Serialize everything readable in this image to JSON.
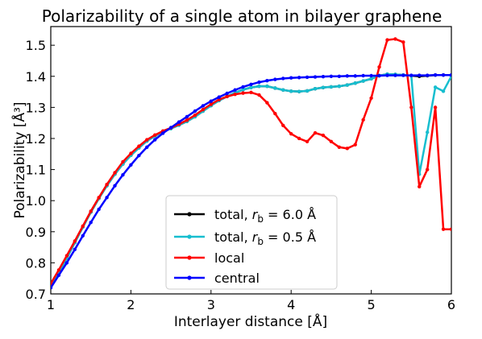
{
  "chart_data": {
    "type": "line",
    "title": "Polarizability of a single atom in bilayer graphene",
    "xlabel": "Interlayer distance [Å]",
    "ylabel": "Polarizability [Å³]",
    "xlim": [
      1,
      6
    ],
    "ylim": [
      0.7,
      1.56
    ],
    "xticks": [
      1,
      2,
      3,
      4,
      5,
      6
    ],
    "yticks": [
      0.7,
      0.8,
      0.9,
      1.0,
      1.1,
      1.2,
      1.3,
      1.4,
      1.5
    ],
    "ytick_labels": [
      "0.7",
      "0.8",
      "0.9",
      "1.0",
      "1.1",
      "1.2",
      "1.3",
      "1.4",
      "1.5"
    ],
    "xtick_labels": [
      "1",
      "2",
      "3",
      "4",
      "5",
      "6"
    ],
    "legend_position": "lower-center",
    "series": [
      {
        "legend_parts": [
          "total, ",
          "r",
          "b",
          " = 6.0 Å"
        ],
        "color": "#000000",
        "marker": "dot",
        "x": [
          1.0,
          1.1,
          1.2,
          1.3,
          1.4,
          1.5,
          1.6,
          1.7,
          1.8,
          1.9,
          2.0,
          2.1,
          2.2,
          2.3,
          2.4,
          2.5,
          2.6,
          2.7,
          2.8,
          2.9,
          3.0,
          3.1,
          3.2,
          3.3,
          3.4,
          3.5,
          3.6,
          3.7,
          3.8,
          3.9,
          4.0,
          4.1,
          4.2,
          4.3,
          4.4,
          4.5,
          4.6,
          4.7,
          4.8,
          4.9,
          5.0,
          5.1,
          5.2,
          5.3,
          5.4,
          5.5,
          5.6,
          5.7,
          5.8,
          5.9,
          6.0
        ],
        "y": [
          0.725,
          0.77,
          0.815,
          0.865,
          0.915,
          0.963,
          1.007,
          1.048,
          1.085,
          1.118,
          1.146,
          1.17,
          1.192,
          1.208,
          1.222,
          1.232,
          1.243,
          1.255,
          1.27,
          1.288,
          1.306,
          1.322,
          1.335,
          1.347,
          1.357,
          1.364,
          1.368,
          1.368,
          1.362,
          1.356,
          1.352,
          1.351,
          1.353,
          1.36,
          1.364,
          1.366,
          1.368,
          1.372,
          1.378,
          1.385,
          1.392,
          1.402,
          1.407,
          1.406,
          1.404,
          1.402,
          1.4,
          1.402,
          1.404,
          1.404,
          1.404
        ]
      },
      {
        "legend_parts": [
          "total, ",
          "r",
          "b",
          " = 0.5 Å"
        ],
        "color": "#17becf",
        "marker": "dot",
        "x": [
          1.0,
          1.1,
          1.2,
          1.3,
          1.4,
          1.5,
          1.6,
          1.7,
          1.8,
          1.9,
          2.0,
          2.1,
          2.2,
          2.3,
          2.4,
          2.5,
          2.6,
          2.7,
          2.8,
          2.9,
          3.0,
          3.1,
          3.2,
          3.3,
          3.4,
          3.5,
          3.6,
          3.7,
          3.8,
          3.9,
          4.0,
          4.1,
          4.2,
          4.3,
          4.4,
          4.5,
          4.6,
          4.7,
          4.8,
          4.9,
          5.0,
          5.1,
          5.2,
          5.3,
          5.4,
          5.5,
          5.6,
          5.7,
          5.8,
          5.9,
          6.0
        ],
        "y": [
          0.725,
          0.77,
          0.815,
          0.865,
          0.915,
          0.963,
          1.007,
          1.048,
          1.085,
          1.118,
          1.146,
          1.17,
          1.192,
          1.208,
          1.222,
          1.232,
          1.243,
          1.255,
          1.27,
          1.288,
          1.306,
          1.322,
          1.335,
          1.347,
          1.357,
          1.364,
          1.368,
          1.368,
          1.362,
          1.356,
          1.352,
          1.351,
          1.353,
          1.36,
          1.364,
          1.366,
          1.368,
          1.372,
          1.378,
          1.385,
          1.392,
          1.402,
          1.407,
          1.406,
          1.404,
          1.402,
          1.085,
          1.22,
          1.365,
          1.352,
          1.4
        ]
      },
      {
        "legend_parts": [
          "local"
        ],
        "color": "#ff0000",
        "marker": "dot",
        "x": [
          1.0,
          1.1,
          1.2,
          1.3,
          1.4,
          1.5,
          1.6,
          1.7,
          1.8,
          1.9,
          2.0,
          2.1,
          2.2,
          2.3,
          2.4,
          2.5,
          2.6,
          2.7,
          2.8,
          2.9,
          3.0,
          3.1,
          3.2,
          3.3,
          3.4,
          3.5,
          3.6,
          3.7,
          3.8,
          3.9,
          4.0,
          4.1,
          4.2,
          4.3,
          4.4,
          4.5,
          4.6,
          4.7,
          4.8,
          4.9,
          5.0,
          5.1,
          5.2,
          5.3,
          5.4,
          5.5,
          5.6,
          5.7,
          5.8,
          5.9,
          6.0
        ],
        "y": [
          0.733,
          0.777,
          0.823,
          0.87,
          0.918,
          0.966,
          1.01,
          1.052,
          1.09,
          1.125,
          1.152,
          1.175,
          1.196,
          1.211,
          1.224,
          1.234,
          1.246,
          1.259,
          1.275,
          1.293,
          1.31,
          1.325,
          1.335,
          1.342,
          1.346,
          1.348,
          1.34,
          1.315,
          1.28,
          1.242,
          1.215,
          1.2,
          1.19,
          1.218,
          1.21,
          1.19,
          1.172,
          1.168,
          1.18,
          1.26,
          1.33,
          1.43,
          1.517,
          1.52,
          1.51,
          1.3,
          1.045,
          1.1,
          1.3,
          0.908,
          0.908
        ]
      },
      {
        "legend_parts": [
          "central"
        ],
        "color": "#0000ff",
        "marker": "dot",
        "x": [
          1.0,
          1.1,
          1.2,
          1.3,
          1.4,
          1.5,
          1.6,
          1.7,
          1.8,
          1.9,
          2.0,
          2.1,
          2.2,
          2.3,
          2.4,
          2.5,
          2.6,
          2.7,
          2.8,
          2.9,
          3.0,
          3.1,
          3.2,
          3.3,
          3.4,
          3.5,
          3.6,
          3.7,
          3.8,
          3.9,
          4.0,
          4.1,
          4.2,
          4.3,
          4.4,
          4.5,
          4.6,
          4.7,
          4.8,
          4.9,
          5.0,
          5.1,
          5.2,
          5.3,
          5.4,
          5.5,
          5.6,
          5.7,
          5.8,
          5.9,
          6.0
        ],
        "y": [
          0.72,
          0.76,
          0.8,
          0.843,
          0.887,
          0.93,
          0.972,
          1.01,
          1.048,
          1.083,
          1.115,
          1.145,
          1.172,
          1.196,
          1.217,
          1.235,
          1.253,
          1.27,
          1.288,
          1.305,
          1.32,
          1.333,
          1.345,
          1.356,
          1.366,
          1.374,
          1.381,
          1.386,
          1.39,
          1.393,
          1.395,
          1.396,
          1.397,
          1.398,
          1.399,
          1.4,
          1.4,
          1.401,
          1.401,
          1.402,
          1.402,
          1.402,
          1.403,
          1.403,
          1.403,
          1.403,
          1.403,
          1.403,
          1.404,
          1.404,
          1.404
        ]
      }
    ]
  }
}
